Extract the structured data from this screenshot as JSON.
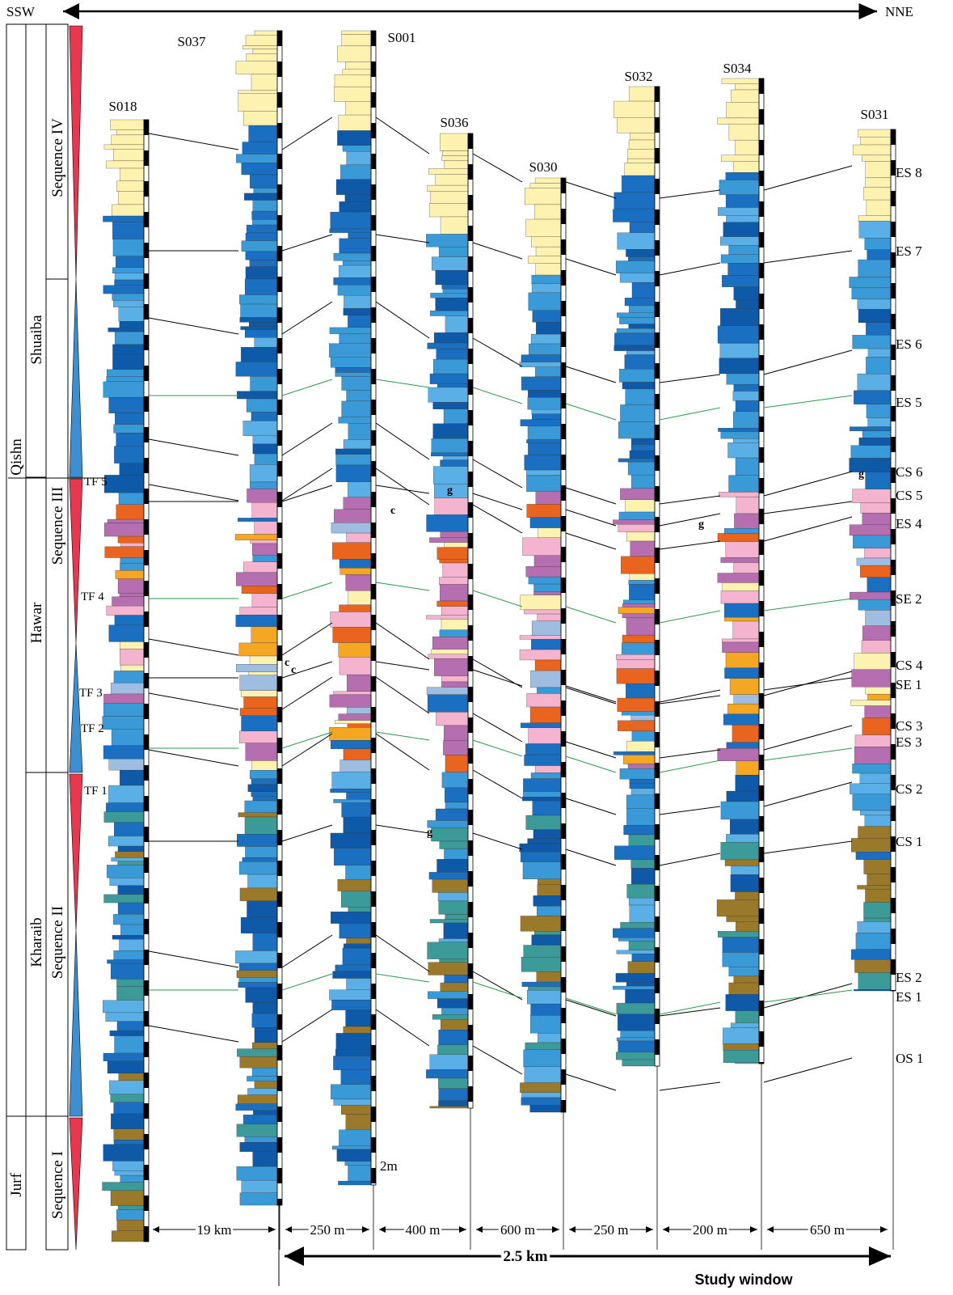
{
  "header": {
    "left": "SSW",
    "right": "NNE"
  },
  "formations": [
    "Qishn",
    "Jurf",
    "Shuaiba",
    "Hawar",
    "Kharaib"
  ],
  "sequences": [
    "Sequence IV",
    "Sequence III",
    "Sequence II",
    "Sequence I"
  ],
  "wells": [
    "S018",
    "S037",
    "S001",
    "S036",
    "S030",
    "S032",
    "S034",
    "S031"
  ],
  "surfaces": [
    "ES 8",
    "ES 7",
    "ES 6",
    "ES 5",
    "CS 6",
    "CS 5",
    "ES 4",
    "SE 2",
    "CS 4",
    "SE 1",
    "CS 3",
    "ES 3",
    "CS 2",
    "CS 1",
    "ES 2",
    "ES 1",
    "OS 1"
  ],
  "tidal_flats": [
    "TF 5",
    "TF 4",
    "TF 3",
    "TF 2",
    "TF 1"
  ],
  "spacings": [
    "19 km",
    "250 m",
    "400 m",
    "600 m",
    "250 m",
    "200 m",
    "650 m"
  ],
  "total_distance": "2.5 km",
  "window_label": "Study window",
  "scale_label": "2m",
  "annotations": [
    "c",
    "g",
    "c",
    "g",
    "c",
    "g",
    "g"
  ]
}
